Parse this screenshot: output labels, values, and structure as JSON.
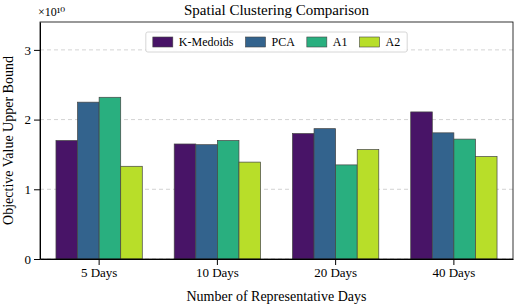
{
  "chart_data": {
    "type": "bar",
    "title": "Spatial Clustering Comparison",
    "x_label": "Number of Representative Days",
    "y_label": "Objective Value Upper Bound",
    "annotations": [
      {
        "text": "×10¹⁰"
      }
    ],
    "categories": [
      "5 Days",
      "10 Days",
      "20 Days",
      "40 Days"
    ],
    "series": [
      {
        "name": "K-Medoids",
        "color": "#481467",
        "values": [
          1.7,
          1.65,
          1.8,
          2.11
        ]
      },
      {
        "name": "PCA",
        "color": "#33638d",
        "values": [
          2.25,
          1.64,
          1.87,
          1.81
        ]
      },
      {
        "name": "A1",
        "color": "#29af7f",
        "values": [
          2.32,
          1.7,
          1.35,
          1.72
        ]
      },
      {
        "name": "A2",
        "color": "#b8de29",
        "values": [
          1.33,
          1.39,
          1.57,
          1.47
        ]
      }
    ],
    "ylim": [
      0,
      3.4
    ],
    "yticks": [
      0,
      1,
      2,
      3
    ],
    "grid": true,
    "legend": "top"
  }
}
